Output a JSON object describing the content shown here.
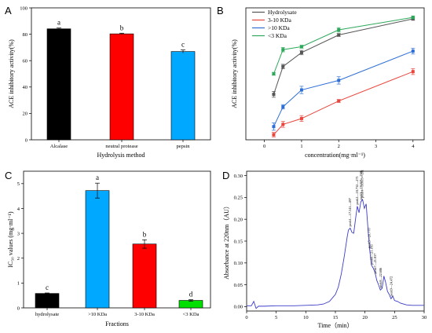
{
  "panels": {
    "A": {
      "letter": "A"
    },
    "B": {
      "letter": "B"
    },
    "C": {
      "letter": "C"
    },
    "D": {
      "letter": "D"
    }
  },
  "chart_data": [
    {
      "panel": "A",
      "type": "bar",
      "categories": [
        "Alcalase",
        "neutral protease",
        "pepsin"
      ],
      "values": [
        84.1,
        80.3,
        66.9
      ],
      "errors": [
        0.6,
        0.5,
        1.2
      ],
      "significance": [
        "a",
        "b",
        "c"
      ],
      "colors": [
        "#000000",
        "#ff0000",
        "#00a8ff"
      ],
      "xlabel": "Hydrolysis method",
      "ylabel": "ACE inhibitory activity(%)",
      "ylim": [
        0,
        100
      ],
      "yticks": [
        0,
        20,
        40,
        60,
        80,
        100
      ]
    },
    {
      "panel": "B",
      "type": "line",
      "xlabel": "concentration(mg·ml⁻¹)",
      "ylabel": "ACE inhibitory activity(%)",
      "xlim": [
        -0.5,
        4.3
      ],
      "ylim": [
        0,
        90
      ],
      "xticks": [
        0,
        1,
        2,
        3,
        4
      ],
      "yticks": [],
      "legend_position": "top-left",
      "series": [
        {
          "name": "Hydrolysate",
          "color": "#555555",
          "x": [
            0.25,
            0.5,
            1,
            2,
            4
          ],
          "y": [
            31,
            50,
            59.5,
            71.5,
            82.5
          ],
          "err": [
            2,
            1.5,
            1.5,
            1,
            1
          ]
        },
        {
          "name": "3-10 KDa",
          "color": "#e8453c",
          "x": [
            0.25,
            0.5,
            1,
            2,
            4
          ],
          "y": [
            3.5,
            10.5,
            14.5,
            26.5,
            46.5
          ],
          "err": [
            1.5,
            2,
            2,
            1,
            2
          ]
        },
        {
          "name": ">10 KDa",
          "color": "#2e6fd6",
          "x": [
            0.25,
            0.5,
            1,
            2,
            4
          ],
          "y": [
            9,
            22.5,
            34,
            40.5,
            60.5
          ],
          "err": [
            2.5,
            1.5,
            2.5,
            2.5,
            2
          ]
        },
        {
          "name": "<3 KDa",
          "color": "#2ea85a",
          "x": [
            0.25,
            0.5,
            1,
            2,
            4
          ],
          "y": [
            45,
            61.5,
            63.5,
            75,
            83.5
          ],
          "err": [
            1,
            1.5,
            1,
            1.5,
            1
          ]
        }
      ]
    },
    {
      "panel": "C",
      "type": "bar",
      "categories": [
        "hydrolysate",
        ">10 KDa",
        "3-10 KDa",
        "<3 KDa"
      ],
      "values": [
        0.58,
        4.72,
        2.57,
        0.3
      ],
      "errors": [
        0.02,
        0.3,
        0.17,
        0.03
      ],
      "significance": [
        "c",
        "a",
        "b",
        "d"
      ],
      "colors": [
        "#000000",
        "#00a8ff",
        "#ff0000",
        "#00e000"
      ],
      "xlabel": "Fractions",
      "ylabel": "IC₅₀ values (mg·ml⁻¹)",
      "ylim": [
        0,
        5.5
      ],
      "yticks": [
        0,
        1,
        2,
        3,
        4,
        5
      ]
    },
    {
      "panel": "D",
      "type": "line",
      "xlabel": "Time（min）",
      "ylabel": "Absorbance at 220nm（AU）",
      "xlim": [
        0,
        30
      ],
      "ylim": [
        -0.01,
        0.31
      ],
      "xticks": [
        0,
        5,
        10,
        15,
        20,
        25,
        30
      ],
      "yticks": [
        0.0,
        0.05,
        0.1,
        0.15,
        0.2,
        0.25,
        0.3
      ],
      "color": "#3c3cc8",
      "x": [
        0,
        0.8,
        1.2,
        1.6,
        2.0,
        3,
        5,
        8,
        10,
        12,
        13,
        14,
        15,
        15.5,
        16,
        16.5,
        17,
        17.2,
        17.5,
        17.8,
        18.1,
        18.4,
        18.7,
        19.0,
        19.3,
        19.6,
        19.9,
        20.2,
        20.5,
        20.8,
        21.1,
        21.4,
        21.7,
        22.0,
        22.3,
        22.6,
        22.9,
        23.2,
        23.5,
        23.8,
        24.1,
        24.4,
        24.7,
        25.0,
        25.5,
        26,
        27,
        28,
        29,
        30
      ],
      "y": [
        0.002,
        0.002,
        0.012,
        -0.004,
        0.001,
        0.001,
        0.002,
        0.002,
        0.003,
        0.004,
        0.006,
        0.012,
        0.028,
        0.045,
        0.075,
        0.115,
        0.16,
        0.175,
        0.18,
        0.17,
        0.168,
        0.2,
        0.23,
        0.215,
        0.24,
        0.245,
        0.225,
        0.235,
        0.18,
        0.13,
        0.095,
        0.088,
        0.078,
        0.06,
        0.05,
        0.038,
        0.042,
        0.07,
        0.055,
        0.035,
        0.028,
        0.018,
        0.024,
        0.014,
        0.012,
        0.008,
        0.004,
        0.003,
        0.003,
        0.003
      ],
      "peak_labels": [
        {
          "text": "peak1—17.541—497",
          "x": 17.5
        },
        {
          "text": "peak2—18.732—271",
          "x": 18.7
        },
        {
          "text": "peak3—19.357—218",
          "x": 19.35
        },
        {
          "text": "peak4—19.605—201",
          "x": 19.6
        },
        {
          "text": "peak5—20.770",
          "x": 20.8
        },
        {
          "text": "peak6—21.185",
          "x": 21.2
        },
        {
          "text": "peak7—21.837",
          "x": 21.8
        },
        {
          "text": "peak8—22.686",
          "x": 22.7
        },
        {
          "text": "peak9—24.472",
          "x": 24.5
        }
      ]
    }
  ]
}
